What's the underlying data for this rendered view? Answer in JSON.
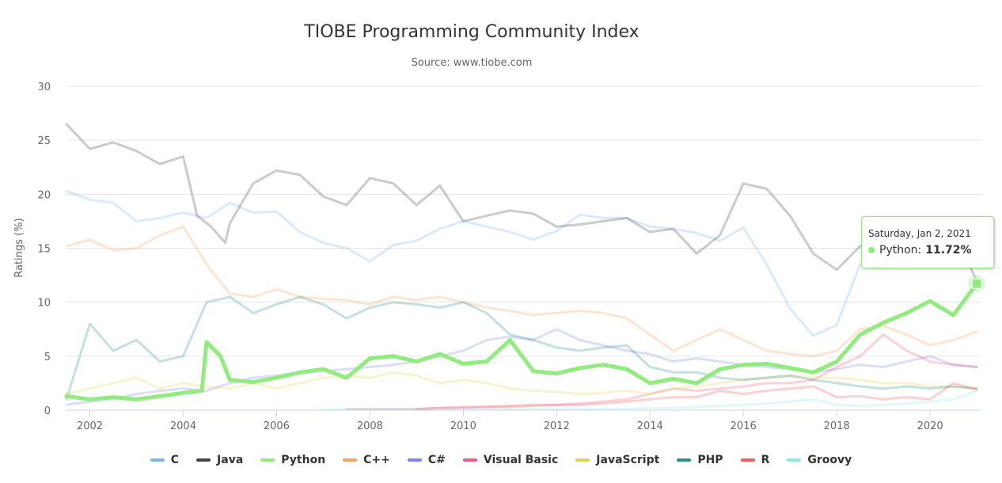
{
  "chart_data": {
    "type": "line",
    "title": "TIOBE Programming Community Index",
    "subtitle": "Source: www.tiobe.com",
    "ylabel": "Ratings (%)",
    "xlabel": "",
    "xlim": [
      2001.5,
      2021.1
    ],
    "ylim": [
      0,
      30
    ],
    "xticks": [
      "2002",
      "2004",
      "2006",
      "2008",
      "2010",
      "2012",
      "2014",
      "2016",
      "2018",
      "2020"
    ],
    "yticks": [
      "0",
      "5",
      "10",
      "15",
      "20",
      "25",
      "30"
    ],
    "grid": "horizontal",
    "legend_position": "bottom",
    "highlight": "Python",
    "series": [
      {
        "name": "C",
        "color": "#7cb5ec",
        "x": [
          2001.5,
          2002,
          2002.5,
          2003,
          2003.5,
          2004,
          2004.5,
          2005,
          2005.5,
          2006,
          2006.5,
          2007,
          2007.5,
          2008,
          2008.5,
          2009,
          2009.5,
          2010,
          2010.5,
          2011,
          2011.5,
          2012,
          2012.5,
          2013,
          2013.5,
          2014,
          2014.5,
          2015,
          2015.5,
          2016,
          2016.5,
          2017,
          2017.5,
          2018,
          2018.5,
          2019,
          2019.5,
          2020,
          2020.5,
          2021
        ],
        "y": [
          20.3,
          19.5,
          19.2,
          17.5,
          17.8,
          18.3,
          17.8,
          19.2,
          18.3,
          18.4,
          16.5,
          15.5,
          15.0,
          13.8,
          15.3,
          15.7,
          16.8,
          17.5,
          17.0,
          16.5,
          15.8,
          16.6,
          18.1,
          17.8,
          17.8,
          17.0,
          16.8,
          16.4,
          15.7,
          16.9,
          13.5,
          9.4,
          6.9,
          7.9,
          13.5,
          15.4,
          14.0,
          16.2,
          16.5,
          16.9
        ]
      },
      {
        "name": "Java",
        "color": "#434348",
        "x": [
          2001.5,
          2002,
          2002.5,
          2003,
          2003.5,
          2004,
          2004.3,
          2004.6,
          2004.9,
          2005,
          2005.5,
          2006,
          2006.5,
          2007,
          2007.5,
          2008,
          2008.5,
          2009,
          2009.5,
          2010,
          2010.5,
          2011,
          2011.5,
          2012,
          2012.5,
          2013,
          2013.5,
          2014,
          2014.5,
          2015,
          2015.5,
          2016,
          2016.5,
          2017,
          2017.5,
          2018,
          2018.5,
          2019,
          2019.5,
          2020,
          2020.5,
          2021
        ],
        "y": [
          26.5,
          24.2,
          24.8,
          24.0,
          22.8,
          23.5,
          18.0,
          17.0,
          15.5,
          17.3,
          21.0,
          22.2,
          21.8,
          19.8,
          19.0,
          21.5,
          21.0,
          19.0,
          20.8,
          17.5,
          18.0,
          18.5,
          18.2,
          17.0,
          17.2,
          17.5,
          17.8,
          16.5,
          16.8,
          14.5,
          16.2,
          21.0,
          20.5,
          18.0,
          14.5,
          13.0,
          15.2,
          16.0,
          16.5,
          16.8,
          16.5,
          12.0
        ]
      },
      {
        "name": "Python",
        "color": "#90ed7d",
        "x": [
          2001.5,
          2002,
          2002.5,
          2003,
          2003.5,
          2004,
          2004.4,
          2004.5,
          2004.8,
          2005,
          2005.5,
          2006,
          2006.5,
          2007,
          2007.5,
          2008,
          2008.5,
          2009,
          2009.5,
          2010,
          2010.5,
          2011,
          2011.5,
          2012,
          2012.5,
          2013,
          2013.5,
          2014,
          2014.5,
          2015,
          2015.5,
          2016,
          2016.5,
          2017,
          2017.5,
          2018,
          2018.5,
          2019,
          2019.5,
          2020,
          2020.5,
          2021
        ],
        "y": [
          1.3,
          1.0,
          1.2,
          1.0,
          1.3,
          1.6,
          1.8,
          6.3,
          5.0,
          2.8,
          2.6,
          3.0,
          3.5,
          3.8,
          3.0,
          4.8,
          5.0,
          4.5,
          5.2,
          4.3,
          4.5,
          6.5,
          3.6,
          3.4,
          3.9,
          4.2,
          3.8,
          2.5,
          2.9,
          2.5,
          3.8,
          4.2,
          4.3,
          3.9,
          3.5,
          4.5,
          7.0,
          8.1,
          9.0,
          10.1,
          8.8,
          11.72
        ]
      },
      {
        "name": "C++",
        "color": "#f7a35c",
        "x": [
          2001.5,
          2002,
          2002.5,
          2003,
          2003.5,
          2004,
          2004.5,
          2005,
          2005.5,
          2006,
          2006.5,
          2007,
          2007.5,
          2008,
          2008.5,
          2009,
          2009.5,
          2010,
          2010.5,
          2011,
          2011.5,
          2012,
          2012.5,
          2013,
          2013.5,
          2014,
          2014.5,
          2015,
          2015.5,
          2016,
          2016.5,
          2017,
          2017.5,
          2018,
          2018.5,
          2019,
          2019.5,
          2020,
          2020.5,
          2021
        ],
        "y": [
          15.2,
          15.8,
          14.8,
          15.0,
          16.2,
          17.0,
          13.5,
          10.8,
          10.5,
          11.2,
          10.5,
          10.3,
          10.2,
          9.8,
          10.5,
          10.2,
          10.5,
          10.0,
          9.5,
          9.2,
          8.8,
          9.0,
          9.2,
          9.0,
          8.5,
          7.0,
          5.5,
          6.5,
          7.5,
          6.5,
          5.5,
          5.2,
          5.0,
          5.5,
          7.5,
          7.8,
          7.0,
          6.0,
          6.5,
          7.3
        ]
      },
      {
        "name": "C#",
        "color": "#8085e9",
        "x": [
          2001.5,
          2002,
          2002.5,
          2003,
          2003.5,
          2004,
          2004.5,
          2005,
          2005.5,
          2006,
          2006.5,
          2007,
          2007.5,
          2008,
          2008.5,
          2009,
          2009.5,
          2010,
          2010.5,
          2011,
          2011.5,
          2012,
          2012.5,
          2013,
          2013.5,
          2014,
          2014.5,
          2015,
          2015.5,
          2016,
          2016.5,
          2017,
          2017.5,
          2018,
          2018.5,
          2019,
          2019.5,
          2020,
          2020.5,
          2021
        ],
        "y": [
          0.5,
          0.8,
          1.0,
          1.5,
          1.8,
          2.0,
          1.8,
          2.5,
          3.0,
          3.2,
          3.5,
          3.6,
          3.8,
          4.0,
          4.2,
          4.5,
          5.0,
          5.5,
          6.5,
          6.8,
          6.5,
          7.5,
          6.5,
          6.0,
          5.5,
          5.2,
          4.5,
          4.8,
          4.5,
          4.2,
          4.0,
          3.8,
          3.5,
          3.8,
          4.2,
          4.0,
          4.5,
          5.0,
          4.2,
          4.0
        ]
      },
      {
        "name": "Visual Basic",
        "color": "#f15c80",
        "x": [
          2007.5,
          2008,
          2008.5,
          2009,
          2009.5,
          2010,
          2010.5,
          2011,
          2011.5,
          2012,
          2012.5,
          2013,
          2013.5,
          2014,
          2014.5,
          2015,
          2015.5,
          2016,
          2016.5,
          2017,
          2017.5,
          2018,
          2018.5,
          2019,
          2019.5,
          2020,
          2020.5,
          2021
        ],
        "y": [
          0.1,
          0.1,
          0.1,
          0.1,
          0.2,
          0.2,
          0.3,
          0.4,
          0.5,
          0.5,
          0.6,
          0.8,
          1.0,
          1.5,
          2.0,
          1.8,
          2.0,
          2.2,
          2.5,
          2.5,
          2.8,
          4.0,
          5.0,
          7.0,
          5.5,
          4.5,
          4.2,
          4.0
        ]
      },
      {
        "name": "JavaScript",
        "color": "#e4d354",
        "x": [
          2001.5,
          2002,
          2002.5,
          2003,
          2003.5,
          2004,
          2004.5,
          2005,
          2005.5,
          2006,
          2006.5,
          2007,
          2007.5,
          2008,
          2008.5,
          2009,
          2009.5,
          2010,
          2010.5,
          2011,
          2011.5,
          2012,
          2012.5,
          2013,
          2013.5,
          2014,
          2014.5,
          2015,
          2015.5,
          2016,
          2016.5,
          2017,
          2017.5,
          2018,
          2018.5,
          2019,
          2019.5,
          2020,
          2020.5,
          2021
        ],
        "y": [
          1.5,
          2.0,
          2.5,
          3.0,
          2.0,
          2.5,
          2.2,
          2.0,
          2.5,
          2.0,
          2.5,
          3.0,
          3.2,
          3.0,
          3.5,
          3.2,
          2.5,
          2.8,
          2.5,
          2.0,
          1.8,
          1.7,
          1.5,
          1.6,
          1.8,
          1.5,
          2.0,
          2.2,
          2.5,
          2.8,
          3.0,
          3.2,
          3.0,
          3.0,
          2.8,
          2.5,
          2.5,
          2.2,
          2.2,
          2.0
        ]
      },
      {
        "name": "PHP",
        "color": "#2b908f",
        "x": [
          2001.5,
          2002,
          2002.5,
          2003,
          2003.5,
          2004,
          2004.5,
          2005,
          2005.5,
          2006,
          2006.5,
          2007,
          2007.5,
          2008,
          2008.5,
          2009,
          2009.5,
          2010,
          2010.5,
          2011,
          2011.5,
          2012,
          2012.5,
          2013,
          2013.5,
          2014,
          2014.5,
          2015,
          2015.5,
          2016,
          2016.5,
          2017,
          2017.5,
          2018,
          2018.5,
          2019,
          2019.5,
          2020,
          2020.5,
          2021
        ],
        "y": [
          1.0,
          8.0,
          5.5,
          6.5,
          4.5,
          5.0,
          10.0,
          10.5,
          9.0,
          9.8,
          10.5,
          9.8,
          8.5,
          9.5,
          10.0,
          9.8,
          9.5,
          10.0,
          9.0,
          7.0,
          6.5,
          5.8,
          5.5,
          5.8,
          6.0,
          4.0,
          3.5,
          3.5,
          3.0,
          2.8,
          3.0,
          3.2,
          2.8,
          2.5,
          2.2,
          2.0,
          2.2,
          2.0,
          2.2,
          2.0
        ]
      },
      {
        "name": "R",
        "color": "#f45b5b",
        "x": [
          2009,
          2009.5,
          2010,
          2010.5,
          2011,
          2011.5,
          2012,
          2012.5,
          2013,
          2013.5,
          2014,
          2014.5,
          2015,
          2015.5,
          2016,
          2016.5,
          2017,
          2017.5,
          2018,
          2018.5,
          2019,
          2019.5,
          2020,
          2020.5,
          2021
        ],
        "y": [
          0.1,
          0.2,
          0.3,
          0.3,
          0.3,
          0.4,
          0.5,
          0.5,
          0.6,
          0.8,
          1.0,
          1.2,
          1.2,
          1.8,
          1.5,
          1.8,
          2.0,
          2.2,
          1.2,
          1.3,
          1.0,
          1.2,
          1.0,
          2.5,
          1.9
        ]
      },
      {
        "name": "Groovy",
        "color": "#91e8e1",
        "x": [
          2007,
          2007.5,
          2008,
          2008.5,
          2009,
          2009.5,
          2010,
          2010.5,
          2011,
          2011.5,
          2012,
          2012.5,
          2013,
          2013.5,
          2014,
          2014.5,
          2015,
          2015.5,
          2016,
          2016.5,
          2017,
          2017.5,
          2018,
          2018.5,
          2019,
          2019.5,
          2020,
          2020.5,
          2021
        ],
        "y": [
          0.05,
          0.1,
          0.1,
          0.1,
          0.1,
          0.1,
          0.1,
          0.1,
          0.1,
          0.1,
          0.1,
          0.1,
          0.1,
          0.1,
          0.2,
          0.2,
          0.3,
          0.4,
          0.5,
          0.6,
          0.8,
          1.0,
          0.5,
          0.4,
          0.5,
          0.6,
          0.8,
          1.0,
          1.8
        ]
      }
    ],
    "tooltip": {
      "date": "Saturday, Jan 2, 2021",
      "series": "Python",
      "value": "11.72%",
      "x": 2021,
      "y": 11.72
    }
  }
}
